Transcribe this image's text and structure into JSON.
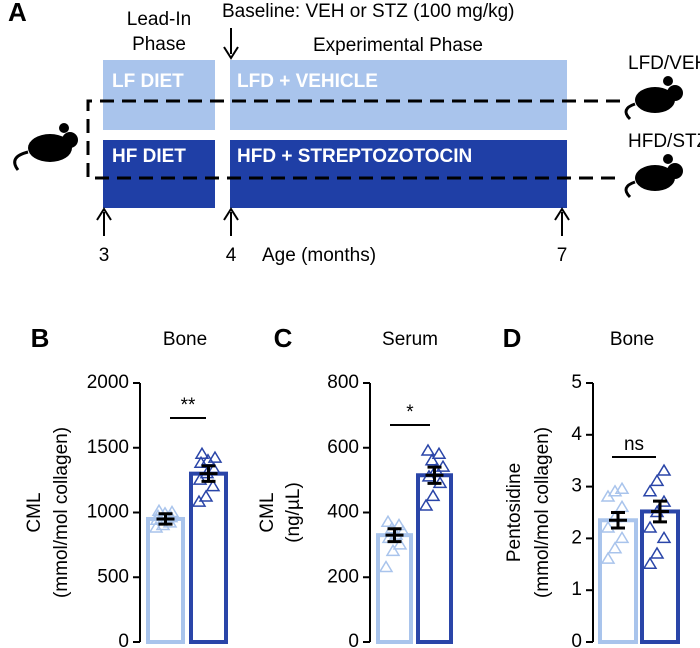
{
  "diagram": {
    "panel": "A",
    "lead_in": [
      "Lead-In",
      "Phase"
    ],
    "baseline": "Baseline: VEH or STZ (100 mg/kg)",
    "experimental": "Experimental Phase",
    "boxes": [
      "LF DIET",
      "LFD + VEHICLE",
      "HF DIET",
      "HFD + STREPTOZOTOCIN"
    ],
    "groups": [
      "LFD/VEH",
      "HFD/STZ"
    ],
    "ages": [
      3,
      4,
      7
    ],
    "age_label": "Age (months)"
  },
  "chart_data": [
    {
      "type": "bar",
      "panel": "B",
      "title": "Bone",
      "y_label": [
        "CML",
        "(mmol/mol collagen)"
      ],
      "ylim": [
        0,
        2000
      ],
      "yticks": [
        0,
        500,
        1000,
        1500,
        2000
      ],
      "significance": "**",
      "bars": [
        {
          "color": "#a9c4ec",
          "value": 950,
          "error": 40,
          "points": [
            880,
            900,
            920,
            940,
            950,
            960,
            970,
            990,
            1000,
            1010
          ]
        },
        {
          "color": "#2a45a8",
          "value": 1300,
          "error": 60,
          "points": [
            1080,
            1120,
            1200,
            1250,
            1300,
            1330,
            1380,
            1400,
            1420,
            1450
          ]
        }
      ]
    },
    {
      "type": "bar",
      "panel": "C",
      "title": "Serum",
      "y_label": [
        "CML",
        "(ng/µL)"
      ],
      "ylim": [
        0,
        800
      ],
      "yticks": [
        0,
        200,
        400,
        600,
        800
      ],
      "significance": "*",
      "bars": [
        {
          "color": "#a9c4ec",
          "value": 330,
          "error": 20,
          "points": [
            230,
            280,
            300,
            320,
            330,
            340,
            350,
            360,
            370
          ]
        },
        {
          "color": "#2a45a8",
          "value": 515,
          "error": 25,
          "points": [
            420,
            450,
            490,
            510,
            530,
            540,
            560,
            580,
            590
          ]
        }
      ]
    },
    {
      "type": "bar",
      "panel": "D",
      "title": "Bone",
      "y_label": [
        "Pentosidine",
        "(mmol/mol collagen)"
      ],
      "ylim": [
        0,
        5
      ],
      "yticks": [
        0,
        1,
        2,
        3,
        4,
        5
      ],
      "significance": "ns",
      "bars": [
        {
          "color": "#a9c4ec",
          "value": 2.35,
          "error": 0.15,
          "points": [
            1.6,
            1.8,
            2.0,
            2.2,
            2.4,
            2.6,
            2.8,
            2.9,
            2.95
          ]
        },
        {
          "color": "#2a45a8",
          "value": 2.52,
          "error": 0.2,
          "points": [
            1.5,
            1.7,
            2.0,
            2.2,
            2.5,
            2.7,
            2.9,
            3.1,
            3.3
          ]
        }
      ]
    }
  ]
}
